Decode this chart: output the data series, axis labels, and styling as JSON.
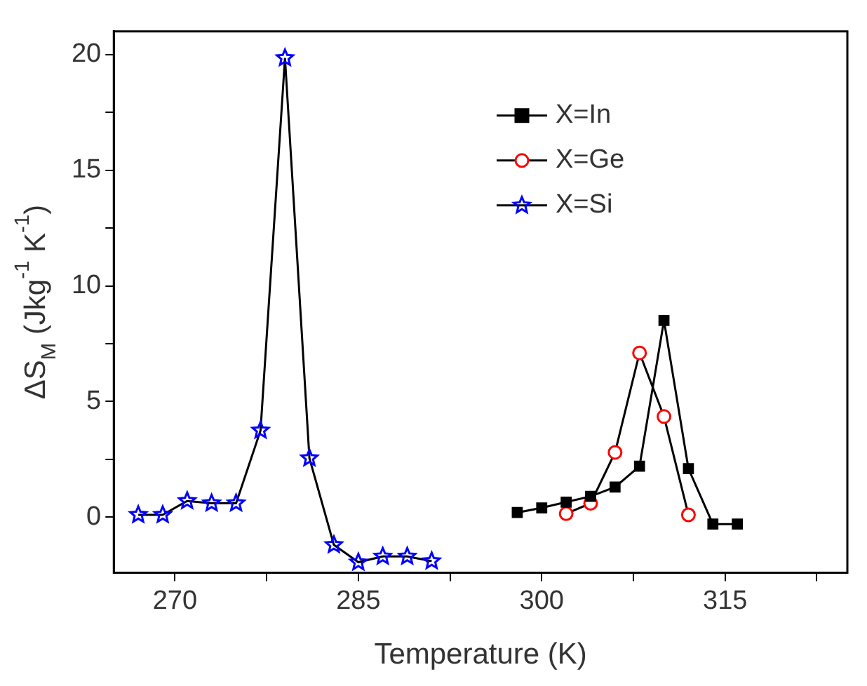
{
  "chart_data": {
    "type": "line",
    "xlabel": "Temperature (K)",
    "ylabel": "ΔS$_{M}$ (Jkg$^{-1}$ K$^{-1}$)",
    "xlim": [
      265,
      325
    ],
    "ylim": [
      -2.4,
      21
    ],
    "xticks": [
      270,
      {
        "value": 277.5,
        "label": null
      },
      285,
      {
        "value": 292.5,
        "label": null
      },
      300,
      {
        "value": 307.5,
        "label": null
      },
      315,
      {
        "value": 322.5,
        "label": null
      }
    ],
    "yticks": [
      0,
      {
        "value": 2.5,
        "label": null
      },
      5,
      {
        "value": 7.5,
        "label": null
      },
      10,
      {
        "value": 12.5,
        "label": null
      },
      15,
      {
        "value": 17.5,
        "label": null
      },
      20
    ],
    "grid": false,
    "legend": "top right",
    "series": [
      {
        "name": "X=In",
        "color": "#000000",
        "marker": "square",
        "x": [
          298,
          300,
          302,
          304,
          306,
          308,
          310,
          312,
          314,
          316
        ],
        "values": [
          0.2,
          0.4,
          0.65,
          0.9,
          1.3,
          2.2,
          8.5,
          2.1,
          -0.3,
          -0.3
        ]
      },
      {
        "name": "X=Ge",
        "color": "#ff0000",
        "marker": "circle",
        "x": [
          302,
          304,
          306,
          308,
          310,
          312
        ],
        "values": [
          0.15,
          0.6,
          2.8,
          7.1,
          4.35,
          0.1
        ]
      },
      {
        "name": "X=Si",
        "color": "#0000ff",
        "marker": "star",
        "x": [
          267,
          269,
          271,
          273,
          275,
          277,
          279,
          281,
          283,
          285,
          287,
          289,
          291
        ],
        "values": [
          0.1,
          0.1,
          0.7,
          0.6,
          0.6,
          3.75,
          19.85,
          2.55,
          -1.2,
          -1.95,
          -1.7,
          -1.7,
          -1.9
        ]
      }
    ]
  }
}
